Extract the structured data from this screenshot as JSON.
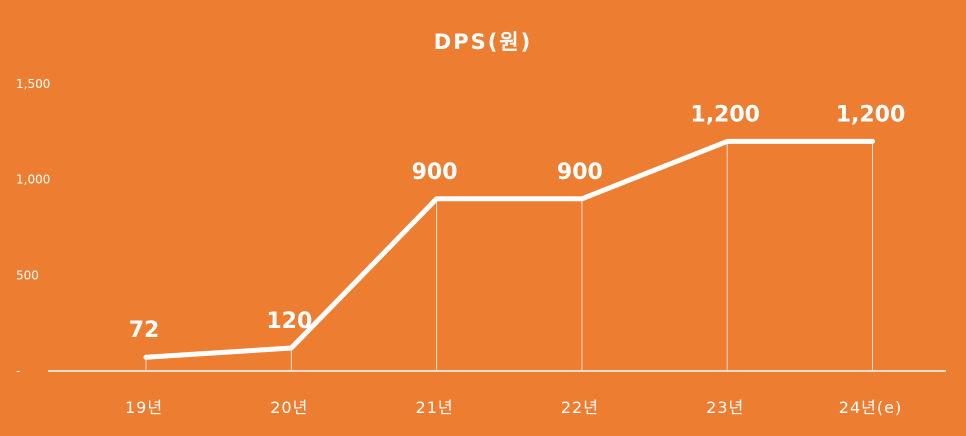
{
  "colors": {
    "background": "#ED7D31",
    "foreground": "#FFFFFF"
  },
  "chart_data": {
    "type": "line",
    "title": "DPS(원)",
    "categories": [
      "19년",
      "20년",
      "21년",
      "22년",
      "23년",
      "24년(e)"
    ],
    "values": [
      72,
      120,
      900,
      900,
      1200,
      1200
    ],
    "data_labels": [
      "72",
      "120",
      "900",
      "900",
      "1,200",
      "1,200"
    ],
    "yticks": [
      0,
      500,
      1000,
      1500
    ],
    "ytick_labels": [
      "-",
      "500",
      "1,000",
      "1,500"
    ],
    "ylim": [
      0,
      1500
    ],
    "grid": false,
    "legend": false
  }
}
